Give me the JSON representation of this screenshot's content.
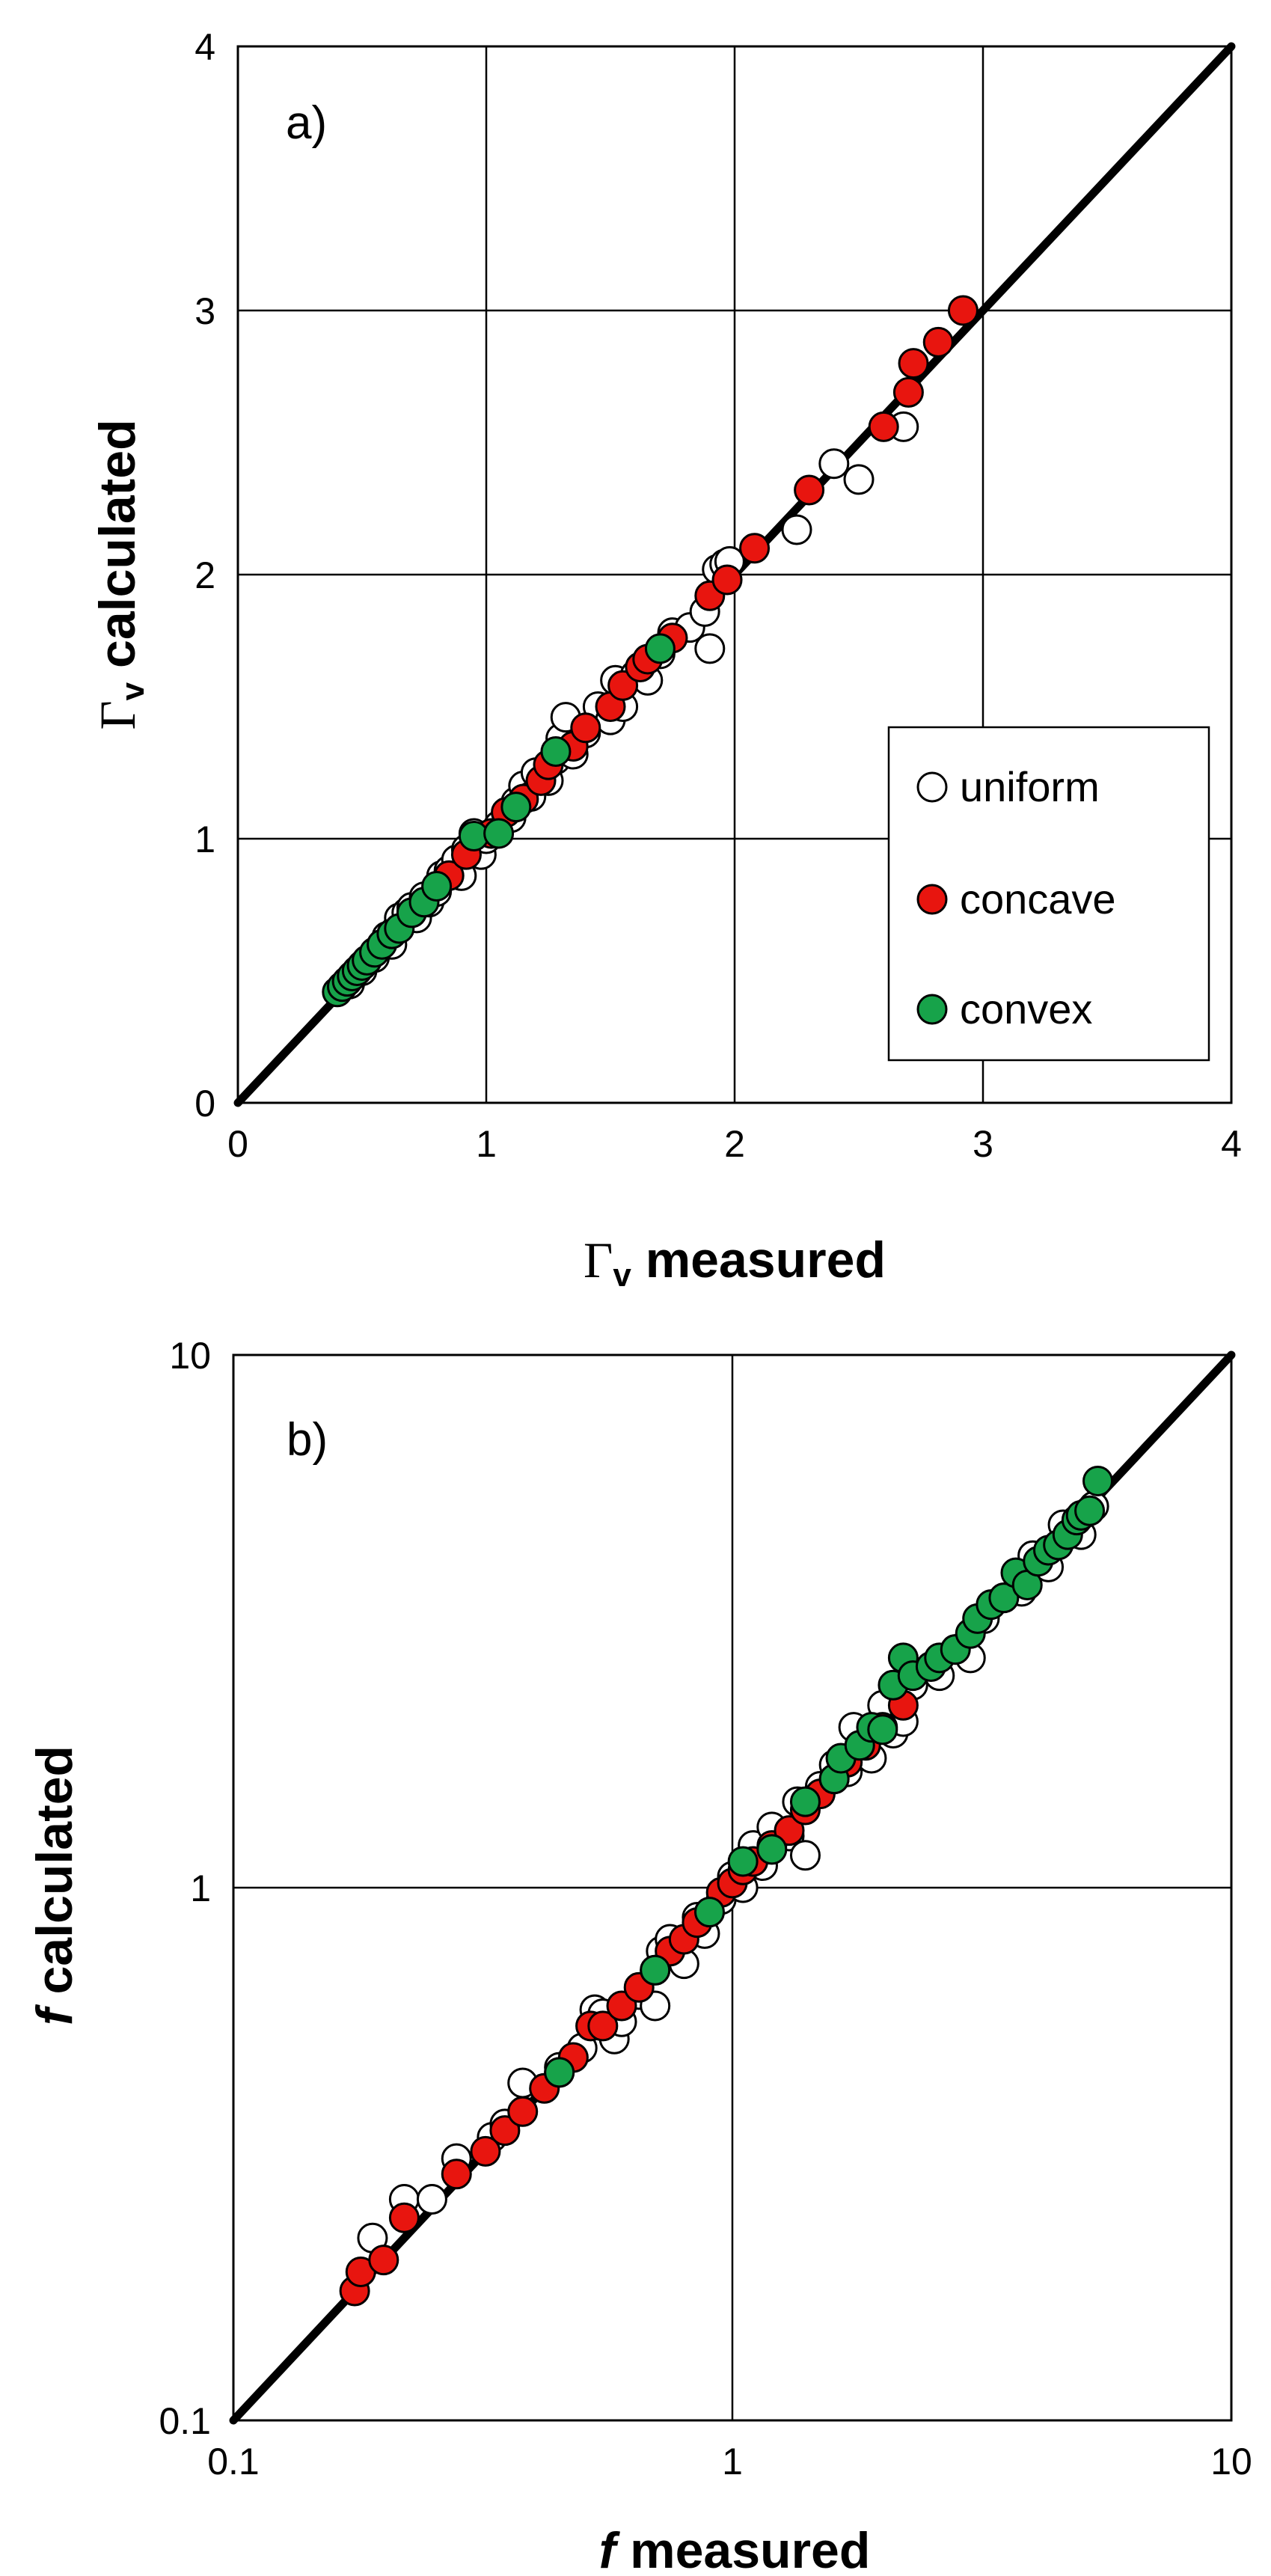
{
  "chart_data": [
    {
      "type": "scatter",
      "panel_label": "a)",
      "xscale": "linear",
      "yscale": "linear",
      "xlim": [
        0,
        4
      ],
      "ylim": [
        0,
        4
      ],
      "xticks": [
        "0",
        "1",
        "2",
        "3",
        "4"
      ],
      "yticks": [
        "0",
        "1",
        "2",
        "3",
        "4"
      ],
      "xlabel": {
        "symbol": "Γ",
        "sub": "v",
        "text": " measured"
      },
      "ylabel": {
        "symbol": "Γ",
        "sub": "v",
        "text": " calculated"
      },
      "grid": true,
      "legend_position": "right",
      "reference_line": {
        "from": [
          0,
          0
        ],
        "to": [
          4,
          4
        ]
      },
      "series": [
        {
          "name": "uniform",
          "fill": "#ffffff",
          "stroke": "#000000",
          "points": [
            [
              0.45,
              0.45
            ],
            [
              0.5,
              0.5
            ],
            [
              0.55,
              0.55
            ],
            [
              0.58,
              0.6
            ],
            [
              0.6,
              0.63
            ],
            [
              0.62,
              0.6
            ],
            [
              0.64,
              0.66
            ],
            [
              0.65,
              0.7
            ],
            [
              0.68,
              0.72
            ],
            [
              0.7,
              0.74
            ],
            [
              0.72,
              0.7
            ],
            [
              0.75,
              0.78
            ],
            [
              0.77,
              0.76
            ],
            [
              0.8,
              0.8
            ],
            [
              0.82,
              0.86
            ],
            [
              0.85,
              0.88
            ],
            [
              0.88,
              0.92
            ],
            [
              0.9,
              0.86
            ],
            [
              0.92,
              0.96
            ],
            [
              0.95,
              1.02
            ],
            [
              0.98,
              0.94
            ],
            [
              1.0,
              1.0
            ],
            [
              1.05,
              1.05
            ],
            [
              1.1,
              1.08
            ],
            [
              1.12,
              1.14
            ],
            [
              1.15,
              1.2
            ],
            [
              1.18,
              1.16
            ],
            [
              1.2,
              1.25
            ],
            [
              1.25,
              1.22
            ],
            [
              1.28,
              1.3
            ],
            [
              1.3,
              1.38
            ],
            [
              1.32,
              1.46
            ],
            [
              1.35,
              1.32
            ],
            [
              1.4,
              1.4
            ],
            [
              1.45,
              1.5
            ],
            [
              1.5,
              1.45
            ],
            [
              1.52,
              1.6
            ],
            [
              1.55,
              1.5
            ],
            [
              1.6,
              1.62
            ],
            [
              1.65,
              1.6
            ],
            [
              1.7,
              1.7
            ],
            [
              1.75,
              1.78
            ],
            [
              1.82,
              1.8
            ],
            [
              1.88,
              1.86
            ],
            [
              1.9,
              1.72
            ],
            [
              1.93,
              2.02
            ],
            [
              1.96,
              2.04
            ],
            [
              1.98,
              2.05
            ],
            [
              2.25,
              2.17
            ],
            [
              2.4,
              2.42
            ],
            [
              2.5,
              2.36
            ],
            [
              2.68,
              2.56
            ]
          ]
        },
        {
          "name": "concave",
          "fill": "#e8150f",
          "stroke": "#000000",
          "points": [
            [
              0.7,
              0.72
            ],
            [
              0.85,
              0.86
            ],
            [
              0.92,
              0.94
            ],
            [
              1.02,
              1.02
            ],
            [
              1.08,
              1.1
            ],
            [
              1.15,
              1.15
            ],
            [
              1.22,
              1.22
            ],
            [
              1.25,
              1.28
            ],
            [
              1.35,
              1.35
            ],
            [
              1.4,
              1.42
            ],
            [
              1.5,
              1.5
            ],
            [
              1.55,
              1.58
            ],
            [
              1.62,
              1.65
            ],
            [
              1.65,
              1.68
            ],
            [
              1.75,
              1.76
            ],
            [
              1.9,
              1.92
            ],
            [
              1.97,
              1.98
            ],
            [
              2.08,
              2.1
            ],
            [
              2.3,
              2.32
            ],
            [
              2.6,
              2.56
            ],
            [
              2.7,
              2.69
            ],
            [
              2.72,
              2.8
            ],
            [
              2.82,
              2.88
            ],
            [
              2.92,
              3.0
            ]
          ]
        },
        {
          "name": "convex",
          "fill": "#17a34a",
          "stroke": "#000000",
          "points": [
            [
              0.4,
              0.42
            ],
            [
              0.42,
              0.44
            ],
            [
              0.44,
              0.46
            ],
            [
              0.46,
              0.48
            ],
            [
              0.48,
              0.5
            ],
            [
              0.5,
              0.52
            ],
            [
              0.52,
              0.54
            ],
            [
              0.55,
              0.57
            ],
            [
              0.58,
              0.6
            ],
            [
              0.62,
              0.64
            ],
            [
              0.65,
              0.66
            ],
            [
              0.7,
              0.72
            ],
            [
              0.75,
              0.76
            ],
            [
              0.8,
              0.82
            ],
            [
              0.95,
              1.01
            ],
            [
              1.05,
              1.02
            ],
            [
              1.12,
              1.12
            ],
            [
              1.28,
              1.33
            ],
            [
              1.7,
              1.72
            ]
          ]
        }
      ]
    },
    {
      "type": "scatter",
      "panel_label": "b)",
      "xscale": "log",
      "yscale": "log",
      "xlim": [
        0.1,
        10
      ],
      "ylim": [
        0.1,
        10
      ],
      "xticks": [
        "0.1",
        "1",
        "10"
      ],
      "yticks": [
        "0.1",
        "1",
        "10"
      ],
      "xlabel": {
        "symbol": "f",
        "text": " measured"
      },
      "ylabel": {
        "symbol": "f",
        "text": " calculated"
      },
      "grid": true,
      "reference_line": {
        "from": [
          0.1,
          0.1
        ],
        "to": [
          10,
          10
        ]
      },
      "series": [
        {
          "name": "uniform",
          "fill": "#ffffff",
          "stroke": "#000000",
          "points": [
            [
              0.19,
              0.22
            ],
            [
              0.22,
              0.26
            ],
            [
              0.25,
              0.26
            ],
            [
              0.28,
              0.31
            ],
            [
              0.33,
              0.34
            ],
            [
              0.35,
              0.36
            ],
            [
              0.38,
              0.43
            ],
            [
              0.45,
              0.46
            ],
            [
              0.5,
              0.5
            ],
            [
              0.53,
              0.59
            ],
            [
              0.55,
              0.58
            ],
            [
              0.58,
              0.52
            ],
            [
              0.6,
              0.56
            ],
            [
              0.65,
              0.63
            ],
            [
              0.7,
              0.6
            ],
            [
              0.72,
              0.76
            ],
            [
              0.75,
              0.8
            ],
            [
              0.8,
              0.72
            ],
            [
              0.85,
              0.88
            ],
            [
              0.88,
              0.82
            ],
            [
              0.9,
              0.9
            ],
            [
              0.95,
              0.95
            ],
            [
              1.0,
              1.05
            ],
            [
              1.05,
              1.0
            ],
            [
              1.1,
              1.2
            ],
            [
              1.15,
              1.1
            ],
            [
              1.2,
              1.3
            ],
            [
              1.3,
              1.25
            ],
            [
              1.35,
              1.45
            ],
            [
              1.4,
              1.15
            ],
            [
              1.5,
              1.55
            ],
            [
              1.6,
              1.7
            ],
            [
              1.7,
              1.65
            ],
            [
              1.75,
              2.0
            ],
            [
              1.8,
              1.85
            ],
            [
              1.9,
              1.75
            ],
            [
              2.0,
              2.2
            ],
            [
              2.1,
              1.95
            ],
            [
              2.2,
              2.05
            ],
            [
              2.3,
              2.4
            ],
            [
              2.5,
              2.6
            ],
            [
              2.6,
              2.5
            ],
            [
              2.8,
              2.8
            ],
            [
              3.0,
              2.7
            ],
            [
              3.2,
              3.2
            ],
            [
              3.5,
              3.5
            ],
            [
              3.8,
              3.6
            ],
            [
              4.0,
              4.2
            ],
            [
              4.3,
              4.0
            ],
            [
              4.6,
              4.8
            ],
            [
              5.0,
              4.6
            ],
            [
              5.3,
              5.2
            ]
          ]
        },
        {
          "name": "concave",
          "fill": "#e8150f",
          "stroke": "#000000",
          "points": [
            [
              0.175,
              0.175
            ],
            [
              0.18,
              0.19
            ],
            [
              0.2,
              0.2
            ],
            [
              0.22,
              0.24
            ],
            [
              0.28,
              0.29
            ],
            [
              0.32,
              0.32
            ],
            [
              0.35,
              0.35
            ],
            [
              0.38,
              0.38
            ],
            [
              0.42,
              0.42
            ],
            [
              0.45,
              0.45
            ],
            [
              0.48,
              0.48
            ],
            [
              0.52,
              0.55
            ],
            [
              0.55,
              0.55
            ],
            [
              0.6,
              0.6
            ],
            [
              0.65,
              0.65
            ],
            [
              0.7,
              0.7
            ],
            [
              0.75,
              0.76
            ],
            [
              0.8,
              0.8
            ],
            [
              0.85,
              0.86
            ],
            [
              0.95,
              0.98
            ],
            [
              1.0,
              1.02
            ],
            [
              1.05,
              1.08
            ],
            [
              1.1,
              1.12
            ],
            [
              1.2,
              1.2
            ],
            [
              1.3,
              1.28
            ],
            [
              1.4,
              1.4
            ],
            [
              1.5,
              1.5
            ],
            [
              1.6,
              1.6
            ],
            [
              1.7,
              1.72
            ],
            [
              1.85,
              1.85
            ],
            [
              2.0,
              2.0
            ],
            [
              2.2,
              2.2
            ]
          ]
        },
        {
          "name": "convex",
          "fill": "#17a34a",
          "stroke": "#000000",
          "points": [
            [
              0.45,
              0.45
            ],
            [
              0.7,
              0.7
            ],
            [
              0.9,
              0.9
            ],
            [
              1.05,
              1.12
            ],
            [
              1.2,
              1.18
            ],
            [
              1.4,
              1.45
            ],
            [
              1.6,
              1.6
            ],
            [
              1.65,
              1.75
            ],
            [
              1.8,
              1.85
            ],
            [
              1.9,
              2.0
            ],
            [
              2.0,
              1.98
            ],
            [
              2.1,
              2.4
            ],
            [
              2.2,
              2.7
            ],
            [
              2.3,
              2.5
            ],
            [
              2.5,
              2.6
            ],
            [
              2.6,
              2.7
            ],
            [
              2.8,
              2.8
            ],
            [
              3.0,
              3.0
            ],
            [
              3.1,
              3.2
            ],
            [
              3.3,
              3.4
            ],
            [
              3.5,
              3.5
            ],
            [
              3.7,
              3.9
            ],
            [
              3.9,
              3.7
            ],
            [
              4.1,
              4.1
            ],
            [
              4.3,
              4.3
            ],
            [
              4.5,
              4.4
            ],
            [
              4.7,
              4.6
            ],
            [
              4.9,
              4.9
            ],
            [
              5.0,
              5.0
            ],
            [
              5.2,
              5.1
            ],
            [
              5.4,
              5.8
            ]
          ]
        }
      ]
    }
  ]
}
